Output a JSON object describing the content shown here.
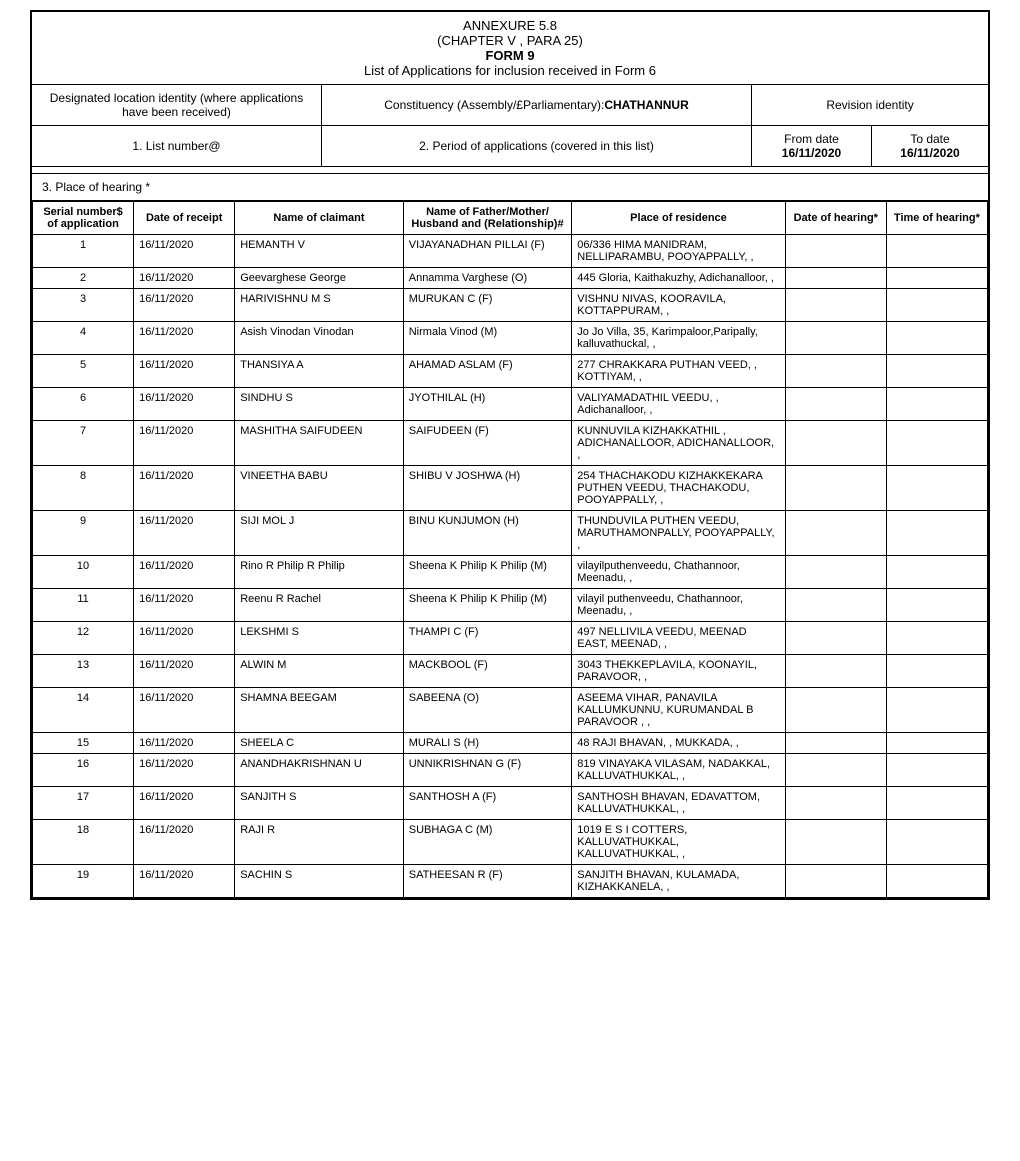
{
  "header": {
    "annexure": "ANNEXURE 5.8",
    "chapter": "(CHAPTER  V , PARA 25)",
    "form": "FORM 9",
    "subtitle": "List of Applications for inclusion received in Form 6"
  },
  "meta": {
    "designated_label": "Designated location identity (where applications have been received)",
    "constituency_label": "Constituency (Assembly/£Parliamentary): ",
    "constituency_value": "CHATHANNUR",
    "revision_label": "Revision identity",
    "list_number_label": "1. List number@",
    "period_label": "2. Period of applications (covered in this list)",
    "from_date_label": "From date",
    "from_date_value": "16/11/2020",
    "to_date_label": "To date",
    "to_date_value": "16/11/2020",
    "place_of_hearing_label": "3. Place of hearing *"
  },
  "columns": {
    "serial": "Serial number$ of application",
    "date_receipt": "Date of receipt",
    "claimant": "Name of claimant",
    "relation": "Name of Father/Mother/ Husband and (Relationship)#",
    "residence": "Place of residence",
    "date_hearing": "Date of hearing*",
    "time_hearing": "Time of hearing*"
  },
  "rows": [
    {
      "serial": "1",
      "date": "16/11/2020",
      "claimant": "HEMANTH V",
      "relation": "VIJAYANADHAN PILLAI  (F)",
      "residence": "06/336 HIMA MANIDRAM, NELLIPARAMBU, POOYAPPALLY, ,"
    },
    {
      "serial": "2",
      "date": "16/11/2020",
      "claimant": "Geevarghese George",
      "relation": "Annamma Varghese (O)",
      "residence": "445 Gloria, Kaithakuzhy, Adichanalloor, ,"
    },
    {
      "serial": "3",
      "date": "16/11/2020",
      "claimant": "HARIVISHNU M S",
      "relation": "MURUKAN C  (F)",
      "residence": "VISHNU NIVAS, KOORAVILA, KOTTAPPURAM, ,"
    },
    {
      "serial": "4",
      "date": "16/11/2020",
      "claimant": "Asish Vinodan Vinodan",
      "relation": "Nirmala Vinod (M)",
      "residence": "Jo Jo Villa, 35, Karimpaloor,Paripally, kalluvathuckal, ,"
    },
    {
      "serial": "5",
      "date": "16/11/2020",
      "claimant": "THANSIYA A",
      "relation": "AHAMAD ASLAM  (F)",
      "residence": "277 CHRAKKARA PUTHAN VEED,  , KOTTIYAM, ,"
    },
    {
      "serial": "6",
      "date": "16/11/2020",
      "claimant": "SINDHU S",
      "relation": "JYOTHILAL  (H)",
      "residence": "VALIYAMADATHIL VEEDU, , Adichanalloor, ,"
    },
    {
      "serial": "7",
      "date": "16/11/2020",
      "claimant": "MASHITHA SAIFUDEEN",
      "relation": "SAIFUDEEN  (F)",
      "residence": "KUNNUVILA KIZHAKKATHIL , ADICHANALLOOR, ADICHANALLOOR, ,"
    },
    {
      "serial": "8",
      "date": "16/11/2020",
      "claimant": "VINEETHA BABU",
      "relation": "SHIBU V JOSHWA  (H)",
      "residence": "254 THACHAKODU KIZHAKKEKARA PUTHEN VEEDU, THACHAKODU, POOYAPPALLY, ,"
    },
    {
      "serial": "9",
      "date": "16/11/2020",
      "claimant": "SIJI MOL J",
      "relation": "BINU KUNJUMON  (H)",
      "residence": "THUNDUVILA PUTHEN VEEDU, MARUTHAMONPALLY, POOYAPPALLY, ,"
    },
    {
      "serial": "10",
      "date": "16/11/2020",
      "claimant": "Rino R Philip R Philip",
      "relation": "Sheena K Philip K Philip (M)",
      "residence": "vilayilputhenveedu, Chathannoor, Meenadu, ,"
    },
    {
      "serial": "11",
      "date": "16/11/2020",
      "claimant": "Reenu R Rachel",
      "relation": "Sheena K Philip K Philip (M)",
      "residence": "vilayil puthenveedu, Chathannoor, Meenadu, ,"
    },
    {
      "serial": "12",
      "date": "16/11/2020",
      "claimant": "LEKSHMI S",
      "relation": "THAMPI C  (F)",
      "residence": "497  NELLIVILA VEEDU, MEENAD EAST, MEENAD, ,"
    },
    {
      "serial": "13",
      "date": "16/11/2020",
      "claimant": "ALWIN M",
      "relation": "MACKBOOL  (F)",
      "residence": "3043 THEKKEPLAVILA, KOONAYIL, PARAVOOR, ,"
    },
    {
      "serial": "14",
      "date": "16/11/2020",
      "claimant": "SHAMNA BEEGAM",
      "relation": "SABEENA  (O)",
      "residence": "ASEEMA VIHAR, PANAVILA KALLUMKUNNU, KURUMANDAL B PARAVOOR , ,"
    },
    {
      "serial": "15",
      "date": "16/11/2020",
      "claimant": "SHEELA C",
      "relation": "MURALI S  (H)",
      "residence": "48 RAJI BHAVAN,  , MUKKADA, ,"
    },
    {
      "serial": "16",
      "date": "16/11/2020",
      "claimant": "ANANDHAKRISHNAN U",
      "relation": "UNNIKRISHNAN G  (F)",
      "residence": "819 VINAYAKA VILASAM, NADAKKAL, KALLUVATHUKKAL, ,"
    },
    {
      "serial": "17",
      "date": "16/11/2020",
      "claimant": "SANJITH S",
      "relation": "SANTHOSH A  (F)",
      "residence": "SANTHOSH BHAVAN, EDAVATTOM, KALLUVATHUKKAL, ,"
    },
    {
      "serial": "18",
      "date": "16/11/2020",
      "claimant": "RAJI R",
      "relation": "SUBHAGA C  (M)",
      "residence": "1019 E S I COTTERS, KALLUVATHUKKAL, KALLUVATHUKKAL, ,"
    },
    {
      "serial": "19",
      "date": "16/11/2020",
      "claimant": "SACHIN S",
      "relation": "SATHEESAN R  (F)",
      "residence": "SANJITH BHAVAN, KULAMADA, KIZHAKKANELA, ,"
    }
  ],
  "styling": {
    "border_color": "#000000",
    "background_color": "#ffffff",
    "font_family": "Arial",
    "header_fontsize": 13,
    "cell_fontsize": 11,
    "meta_fontsize": 12
  }
}
